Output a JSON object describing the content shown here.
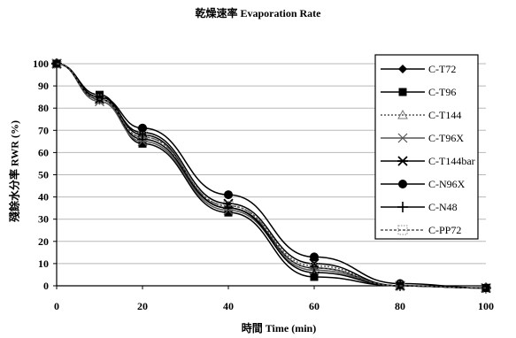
{
  "chart_data": {
    "type": "line",
    "title": "乾燥速率 Evaporation Rate",
    "xlabel": "時間 Time (min)",
    "ylabel": "殘餘水分率 RWR (%)",
    "x": [
      0,
      10,
      20,
      40,
      60,
      80,
      100
    ],
    "xticks": [
      0,
      20,
      40,
      60,
      80,
      100
    ],
    "yticks": [
      0,
      10,
      20,
      30,
      40,
      50,
      60,
      70,
      80,
      90,
      100
    ],
    "xlim": [
      0,
      100
    ],
    "ylim": [
      0,
      100
    ],
    "grid": true,
    "legend_position": "right",
    "series": [
      {
        "name": "C-T72",
        "marker": "diamond",
        "values": [
          100,
          85,
          68,
          35,
          8,
          0,
          -1
        ]
      },
      {
        "name": "C-T96",
        "marker": "square",
        "values": [
          100,
          86,
          64,
          33,
          4,
          0,
          -1
        ]
      },
      {
        "name": "C-T144",
        "marker": "triangle",
        "values": [
          100,
          84,
          67,
          36,
          9,
          0,
          -1
        ]
      },
      {
        "name": "C-T96X",
        "marker": "x",
        "values": [
          100,
          83,
          65,
          34,
          7,
          0,
          -1
        ]
      },
      {
        "name": "C-T144bar",
        "marker": "asterisk",
        "values": [
          100,
          84,
          69,
          37,
          10,
          0,
          -1
        ]
      },
      {
        "name": "C-N96X",
        "marker": "circle",
        "values": [
          100,
          85,
          71,
          41,
          13,
          1,
          -1
        ]
      },
      {
        "name": "C-N48",
        "marker": "plus",
        "values": [
          100,
          84,
          66,
          35,
          6,
          0,
          -1
        ]
      },
      {
        "name": "C-PP72",
        "marker": "dashed",
        "values": [
          100,
          84,
          67,
          36,
          8,
          0,
          -1
        ]
      }
    ]
  }
}
